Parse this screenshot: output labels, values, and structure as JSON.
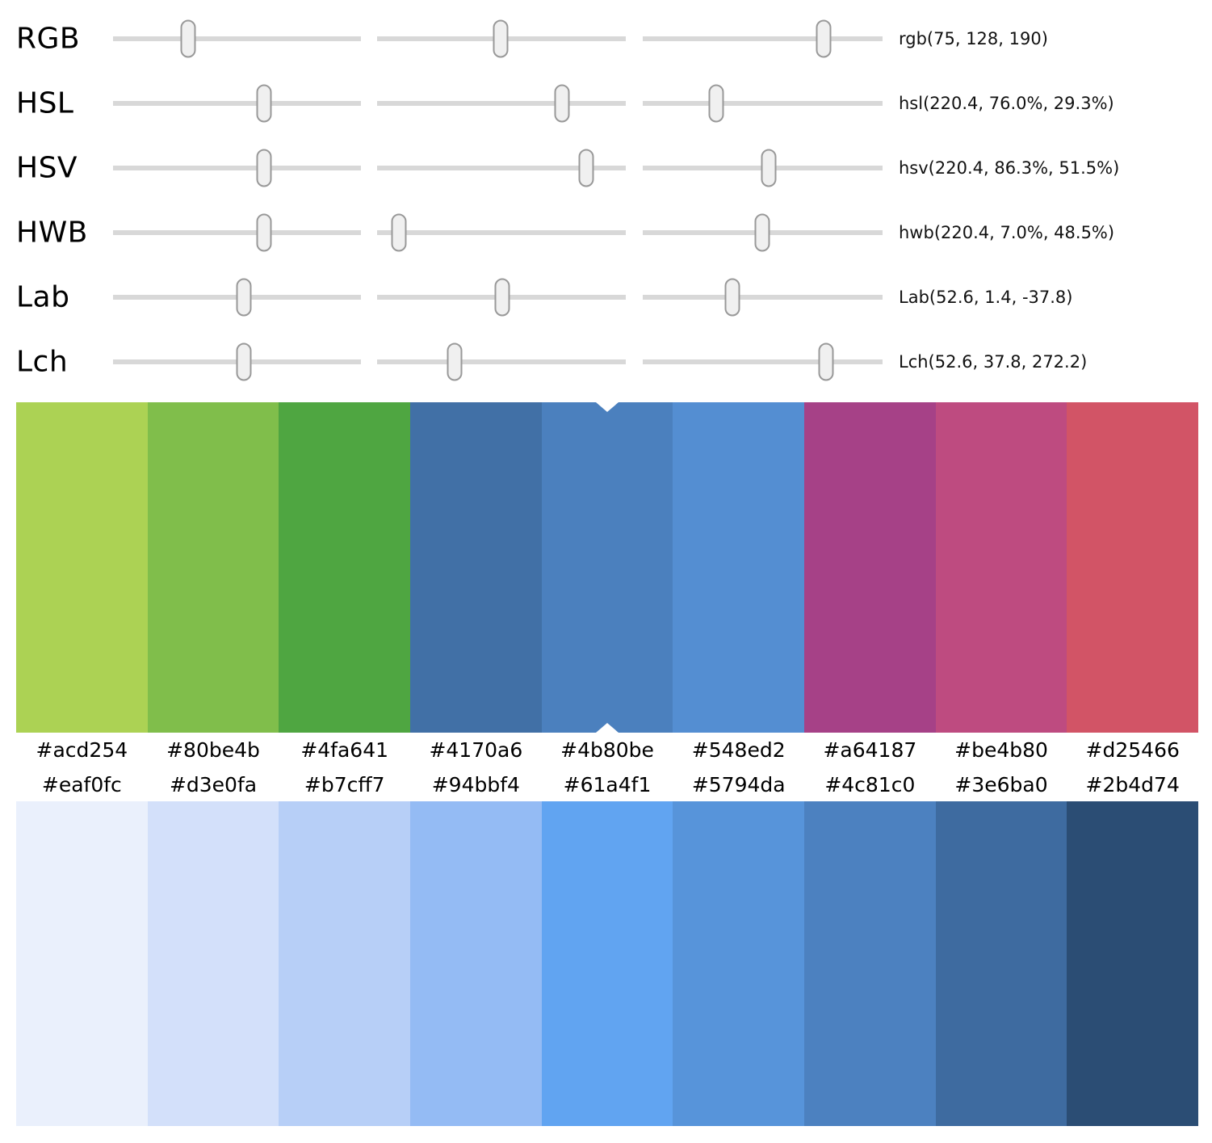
{
  "background": "#ffffff",
  "slider_panel": {
    "track_color": "#d8d8d8",
    "thumb_fill": "#f0f0f0",
    "thumb_border": "#999999",
    "rows": [
      {
        "model": "RGB",
        "value_text": "rgb(75, 128, 190)",
        "thumb_percents": [
          30.3,
          49.7,
          75.4
        ]
      },
      {
        "model": "HSL",
        "value_text": "hsl(220.4, 76.0%, 29.3%)",
        "thumb_percents": [
          61.0,
          74.5,
          30.6
        ]
      },
      {
        "model": "HSV",
        "value_text": "hsv(220.4, 86.3%, 51.5%)",
        "thumb_percents": [
          61.0,
          84.0,
          52.5
        ]
      },
      {
        "model": "HWB",
        "value_text": "hwb(220.4, 7.0%, 48.5%)",
        "thumb_percents": [
          61.0,
          8.8,
          49.8
        ]
      },
      {
        "model": "Lab",
        "value_text": "Lab(52.6, 1.4, -37.8)",
        "thumb_percents": [
          52.8,
          50.3,
          37.4
        ]
      },
      {
        "model": "Lch",
        "value_text": "Lch(52.6, 37.8, 272.2)",
        "thumb_percents": [
          52.8,
          31.2,
          76.4
        ]
      }
    ]
  },
  "hue_palette": {
    "selected_index": 4,
    "marker_color": "#ffffff",
    "swatches": [
      "#acd254",
      "#80be4b",
      "#4fa641",
      "#4170a6",
      "#4b80be",
      "#548ed2",
      "#a64187",
      "#be4b80",
      "#d25466"
    ]
  },
  "tint_palette": {
    "swatches": [
      "#eaf0fc",
      "#d3e0fa",
      "#b7cff7",
      "#94bbf4",
      "#61a4f1",
      "#5794da",
      "#4c81c0",
      "#3e6ba0",
      "#2b4d74"
    ]
  }
}
